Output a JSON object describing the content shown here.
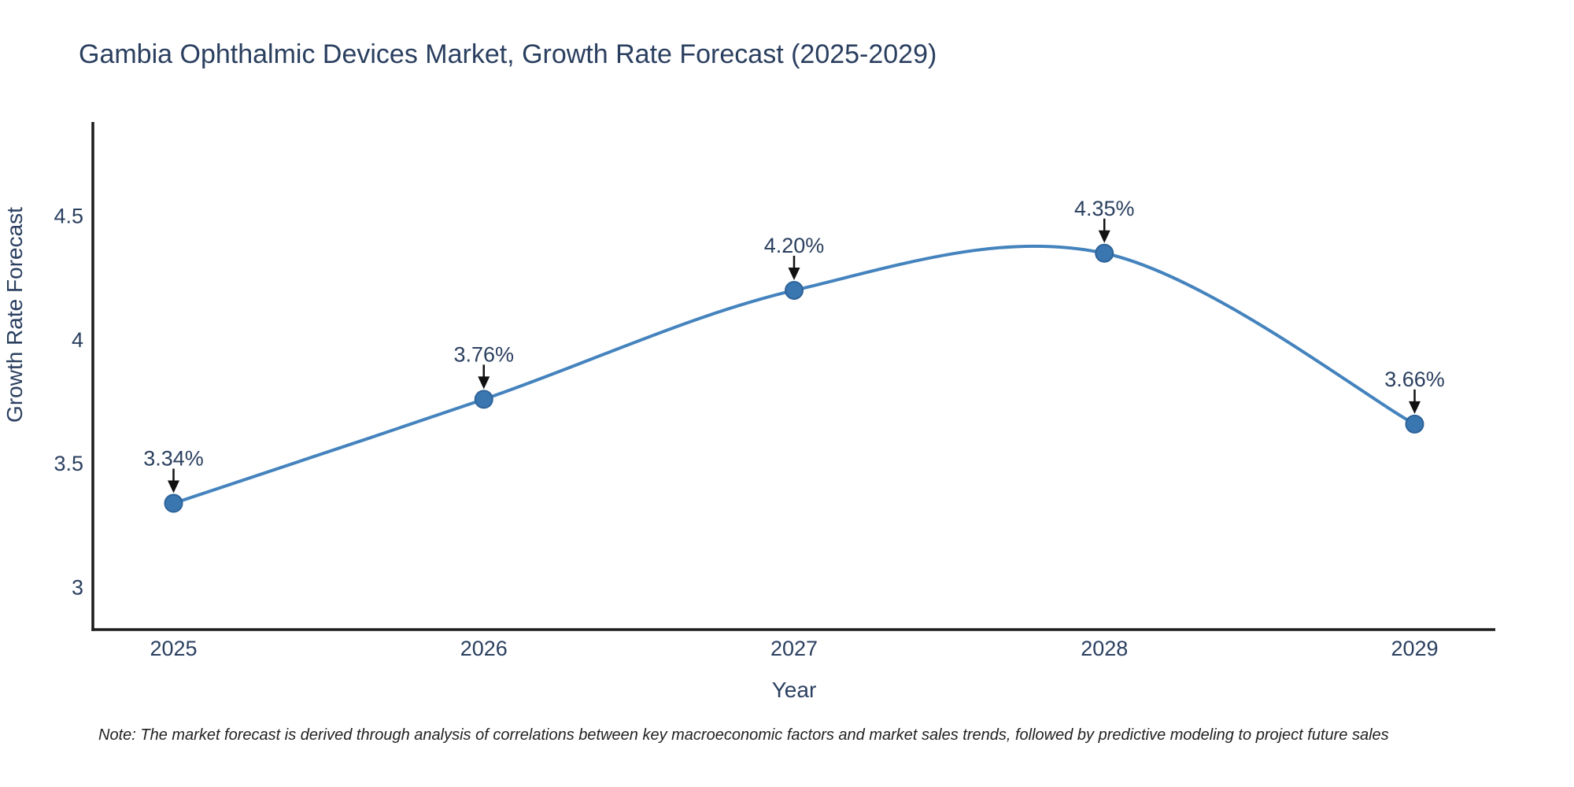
{
  "title": "Gambia Ophthalmic Devices Market, Growth Rate Forecast (2025-2029)",
  "note": "Note: The market forecast is derived through analysis of correlations between key macroeconomic factors and market sales trends, followed by predictive modeling to project future sales",
  "chart_data": {
    "type": "line",
    "line_shape": "spline",
    "title": "Gambia Ophthalmic Devices Market, Growth Rate Forecast (2025-2029)",
    "xlabel": "Year",
    "ylabel": "Growth Rate Forecast",
    "x": [
      2025,
      2026,
      2027,
      2028,
      2029
    ],
    "values": [
      3.34,
      3.76,
      4.2,
      4.35,
      3.66
    ],
    "point_labels": [
      "3.34%",
      "3.76%",
      "4.20%",
      "4.35%",
      "3.66%"
    ],
    "x_tick_labels": [
      "2025",
      "2026",
      "2027",
      "2028",
      "2029"
    ],
    "y_ticks": [
      3,
      3.5,
      4,
      4.5
    ],
    "y_tick_labels": [
      "3",
      "3.5",
      "4",
      "4.5"
    ],
    "xlim": [
      2024.74,
      2029.26
    ],
    "ylim": [
      2.83,
      4.88
    ],
    "grid": false,
    "legend": "none",
    "colors": {
      "line": "#4483bd",
      "marker_fill": "#3a76b0",
      "marker_edge": "#2e6399",
      "axis_line": "#1c1c1c",
      "text": "#2a3f5f",
      "annotation_arrow": "#111111",
      "note_text": "#222222"
    }
  }
}
